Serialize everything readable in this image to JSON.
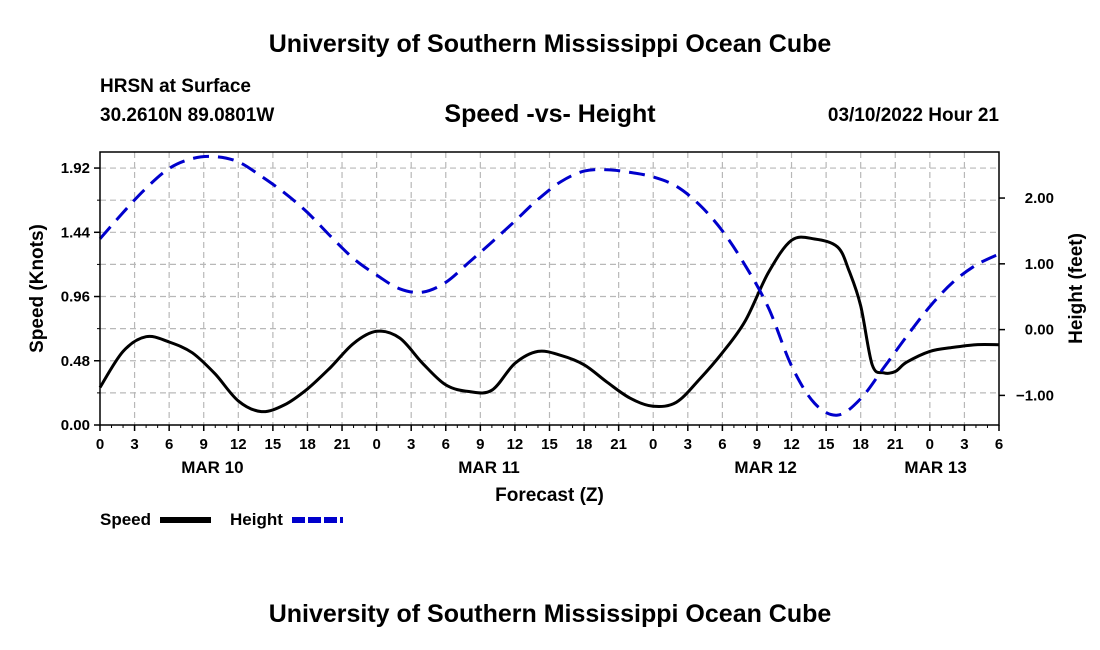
{
  "header": {
    "title": "University of Southern Mississippi Ocean Cube",
    "station": "HRSN at Surface",
    "coords": "30.2610N  89.0801W",
    "subtitle": "Speed -vs- Height",
    "datetime": "03/10/2022 Hour 21"
  },
  "footer": {
    "title": "University of Southern Mississippi Ocean Cube"
  },
  "chart_data": {
    "type": "line",
    "title": "Speed -vs- Height",
    "xlabel": "Forecast (Z)",
    "ylabel": "Speed (Knots)",
    "y2label": "Height (feet)",
    "grid": true,
    "xlim": [
      0,
      78
    ],
    "ylim": [
      0,
      2.04
    ],
    "y2lim": [
      -1.45,
      2.7
    ],
    "x_ticks": [
      0,
      3,
      6,
      9,
      12,
      15,
      18,
      21,
      24,
      27,
      30,
      33,
      36,
      39,
      42,
      45,
      48,
      51,
      54,
      57,
      60,
      63,
      66,
      69,
      72,
      75,
      78
    ],
    "x_tick_labels": [
      "0",
      "3",
      "6",
      "9",
      "12",
      "15",
      "18",
      "21",
      "0",
      "3",
      "6",
      "9",
      "12",
      "15",
      "18",
      "21",
      "0",
      "3",
      "6",
      "9",
      "12",
      "15",
      "18",
      "21",
      "0",
      "3",
      "6"
    ],
    "y_ticks": [
      0,
      0.48,
      0.96,
      1.44,
      1.92
    ],
    "y_tick_labels": [
      "0.00",
      "0.48",
      "0.96",
      "1.44",
      "1.92"
    ],
    "y2_ticks": [
      -1,
      0,
      1,
      2
    ],
    "y2_tick_labels": [
      "−1.00",
      "0.00",
      "1.00",
      "2.00"
    ],
    "date_labels": [
      {
        "x": 9.75,
        "label": "MAR 10"
      },
      {
        "x": 33.75,
        "label": "MAR 11"
      },
      {
        "x": 57.75,
        "label": "MAR 12"
      },
      {
        "x": 72.5,
        "label": "MAR 13"
      }
    ],
    "legend": [
      {
        "name": "Speed",
        "color": "#000000",
        "dash": "solid"
      },
      {
        "name": "Height",
        "color": "#0000cc",
        "dash": "dashed"
      }
    ],
    "series": [
      {
        "name": "Speed",
        "axis": "left",
        "color": "#000000",
        "x": [
          0,
          2,
          4,
          6,
          8,
          10,
          12,
          14,
          16,
          18,
          20,
          22,
          24,
          26,
          28,
          30,
          32,
          34,
          36,
          38,
          40,
          42,
          44,
          46,
          48,
          50,
          52,
          54,
          56,
          58,
          60,
          62,
          64,
          65,
          66,
          67,
          68,
          69,
          70,
          72,
          74,
          76,
          78
        ],
        "values": [
          0.28,
          0.55,
          0.66,
          0.62,
          0.54,
          0.38,
          0.18,
          0.1,
          0.15,
          0.27,
          0.43,
          0.61,
          0.7,
          0.65,
          0.46,
          0.3,
          0.25,
          0.26,
          0.46,
          0.55,
          0.52,
          0.45,
          0.32,
          0.2,
          0.14,
          0.17,
          0.34,
          0.54,
          0.78,
          1.14,
          1.38,
          1.39,
          1.33,
          1.15,
          0.89,
          0.45,
          0.39,
          0.4,
          0.47,
          0.55,
          0.58,
          0.6,
          0.6
        ]
      },
      {
        "name": "Height",
        "axis": "right",
        "color": "#0000cc",
        "x": [
          0,
          2,
          4,
          6,
          8,
          10,
          12,
          14,
          16,
          18,
          20,
          22,
          24,
          26,
          28,
          30,
          32,
          34,
          36,
          38,
          40,
          42,
          44,
          46,
          48,
          50,
          52,
          54,
          56,
          58,
          60,
          62,
          64,
          66,
          68,
          70,
          72,
          74,
          76,
          78
        ],
        "values": [
          1.38,
          1.78,
          2.15,
          2.45,
          2.6,
          2.63,
          2.55,
          2.33,
          2.08,
          1.78,
          1.42,
          1.08,
          0.83,
          0.62,
          0.57,
          0.72,
          1.02,
          1.33,
          1.65,
          1.98,
          2.25,
          2.41,
          2.43,
          2.39,
          2.32,
          2.18,
          1.9,
          1.5,
          0.97,
          0.33,
          -0.55,
          -1.12,
          -1.3,
          -1.05,
          -0.58,
          -0.1,
          0.35,
          0.72,
          0.98,
          1.15
        ]
      }
    ]
  }
}
